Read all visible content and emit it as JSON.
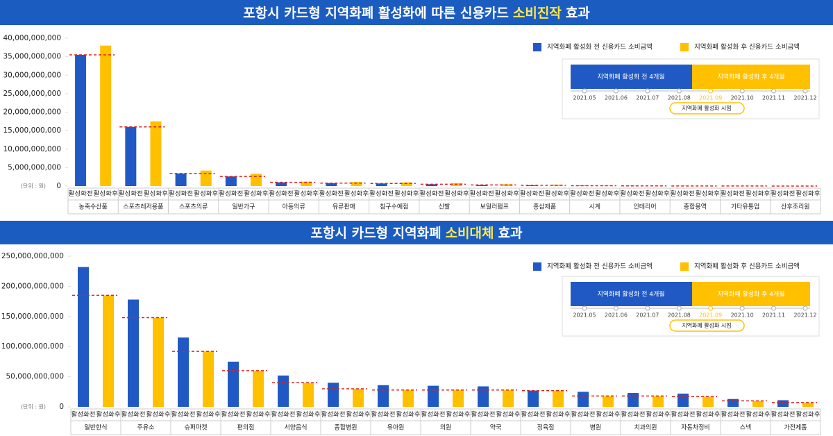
{
  "chart_data": [
    {
      "type": "bar",
      "title": [
        "포항시 카드형 지역화폐 활성화에 따른 신용카드",
        "소비진작",
        "효과"
      ],
      "unit": "(단위 : 원)",
      "categories": [
        "농축수산품",
        "스포츠레저용품",
        "스포츠의류",
        "일반가구",
        "아동의류",
        "유류판매",
        "침구수예점",
        "신발",
        "보일러펌프",
        "홍삼제품",
        "시계",
        "인테리어",
        "종합용역",
        "기타유통업",
        "산후조리원"
      ],
      "sub_labels": [
        "활성화전",
        "활성화후"
      ],
      "series": [
        {
          "name": "지역화폐 활성화 전 신용카드 소비금액",
          "color": "#2159c4",
          "values": [
            35500000000,
            16000000000,
            3400000000,
            2600000000,
            1000000000,
            800000000,
            700000000,
            500000000,
            300000000,
            200000000,
            100000000,
            50000000,
            30000000,
            20000000,
            10000000
          ]
        },
        {
          "name": "지역화폐 활성화 후 신용카드 소비금액",
          "color": "#ffc000",
          "values": [
            38000000000,
            17500000000,
            4200000000,
            3300000000,
            1200000000,
            1100000000,
            1000000000,
            800000000,
            500000000,
            400000000,
            100000000,
            50000000,
            30000000,
            20000000,
            10000000
          ]
        }
      ],
      "reference_series": 0,
      "reference_color": "#e02020",
      "ylim": [
        0,
        40000000000
      ],
      "yticks": [
        0,
        {
          "value": 5000000000,
          "label": "5,000,000,000"
        },
        {
          "value": 10000000000,
          "label": "10,000,000,000"
        },
        {
          "value": 15000000000,
          "label": "15,000,000,000"
        },
        {
          "value": 20000000000,
          "label": "20,000,000,000"
        },
        {
          "value": 25000000000,
          "label": "25,000,000,000"
        },
        {
          "value": 30000000000,
          "label": "30,000,000,000"
        },
        {
          "value": 35000000000,
          "label": "35,000,000,000"
        },
        {
          "value": 40000000000,
          "label": "40,000,000,000"
        }
      ],
      "grid": false,
      "timeline": {
        "before": "지역화폐 활성화 전 4개월",
        "after": "지역화폐 활성화 후 4개월",
        "dates": [
          "2021.05",
          "2021.06",
          "2021.07",
          "2021.08",
          "2021.09",
          "2021.10",
          "2021.11",
          "2021.12"
        ],
        "highlight": 4,
        "marker": "지역화폐 활성화 시점"
      }
    },
    {
      "type": "bar",
      "title": [
        "포항시 카드형 지역화폐",
        "소비대체",
        "효과"
      ],
      "unit": "(단위 : 원)",
      "categories": [
        "일반한식",
        "주유소",
        "슈퍼마켓",
        "편의점",
        "서양음식",
        "종합병원",
        "유아원",
        "의원",
        "약국",
        "정육점",
        "병원",
        "치과의원",
        "자동차정비",
        "스넥",
        "가전제품"
      ],
      "sub_labels": [
        "활성화전",
        "활성화후"
      ],
      "series": [
        {
          "name": "지역화폐 활성화 전 신용카드 소비금액",
          "color": "#2159c4",
          "values": [
            232000000000,
            178000000000,
            115000000000,
            75000000000,
            52000000000,
            40000000000,
            36000000000,
            35000000000,
            34000000000,
            27000000000,
            25000000000,
            23000000000,
            22000000000,
            13000000000,
            11000000000
          ]
        },
        {
          "name": "지역화폐 활성화 후 신용카드 소비금액",
          "color": "#ffc000",
          "values": [
            185000000000,
            148000000000,
            92000000000,
            60000000000,
            40000000000,
            30000000000,
            28000000000,
            28000000000,
            28000000000,
            27000000000,
            18000000000,
            18000000000,
            17000000000,
            10000000000,
            7000000000
          ]
        }
      ],
      "reference_series": 1,
      "reference_color": "#e02020",
      "ylim": [
        0,
        250000000000
      ],
      "yticks": [
        0,
        {
          "value": 50000000000,
          "label": "50,000,000,000"
        },
        {
          "value": 100000000000,
          "label": "100,000,000,000"
        },
        {
          "value": 150000000000,
          "label": "150,000,000,000"
        },
        {
          "value": 200000000000,
          "label": "200,000,000,000"
        },
        {
          "value": 250000000000,
          "label": "250,000,000,000"
        }
      ],
      "grid": false,
      "timeline": {
        "before": "지역화폐 활성화 전 4개월",
        "after": "지역화폐 활성화 후 4개월",
        "dates": [
          "2021.05",
          "2021.06",
          "2021.07",
          "2021.08",
          "2021.09",
          "2021.10",
          "2021.11",
          "2021.12"
        ],
        "highlight": 4,
        "marker": "지역화폐 활성화 시점"
      }
    }
  ]
}
